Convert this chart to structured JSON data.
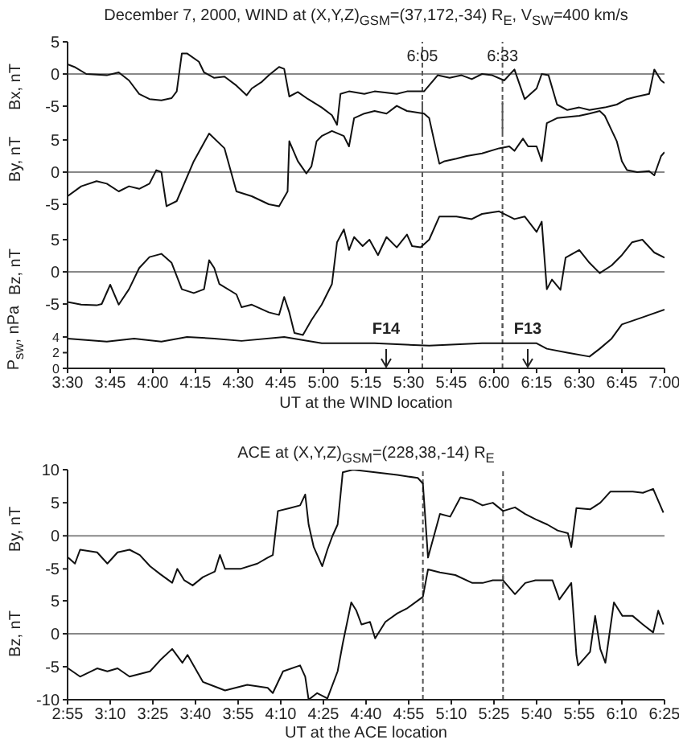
{
  "chart_data": [
    {
      "type": "line",
      "title": "December 7, 2000, WIND at (X,Y,Z)$_{GSM}$=(37,172,-34) R$_{E}$, V$_{SW}$=400 km/s",
      "ylabel": "Bx, nT",
      "color": "#111111",
      "x": [
        3.5,
        3.54,
        3.61,
        3.73,
        3.8,
        3.86,
        3.92,
        3.98,
        4.05,
        4.11,
        4.14,
        4.17,
        4.2,
        4.27,
        4.3,
        4.36,
        4.42,
        4.49,
        4.55,
        4.58,
        4.64,
        4.68,
        4.74,
        4.77,
        4.8,
        4.85,
        4.91,
        4.99,
        5.05,
        5.08,
        5.1,
        5.15,
        5.24,
        5.3,
        5.43,
        5.49,
        5.59,
        5.67,
        5.74,
        5.81,
        5.87,
        5.93,
        5.99,
        6.06,
        6.12,
        6.18,
        6.25,
        6.28,
        6.32,
        6.37,
        6.43,
        6.5,
        6.56,
        6.65,
        6.72,
        6.78,
        6.84,
        6.91,
        6.94,
        6.98,
        7.0
      ],
      "values": [
        1.5,
        1.1,
        0,
        -0.2,
        0.25,
        -1,
        -3.1,
        -3.9,
        -4.1,
        -3.75,
        -2.7,
        3.2,
        3.2,
        1.9,
        0.25,
        -0.6,
        -0.4,
        -1.8,
        -3.3,
        -2.25,
        -1.2,
        -0.2,
        1.1,
        0.8,
        -3.5,
        -2.8,
        -3.9,
        -5.2,
        -6.4,
        -7.9,
        -3.1,
        -2.7,
        -3.1,
        -2.7,
        -3.1,
        -2.7,
        -2.7,
        -0.2,
        -0.6,
        -0.2,
        -0.8,
        0,
        -0.2,
        -1,
        0.7,
        -3.9,
        -2.25,
        0,
        -0.2,
        -4.75,
        -5.6,
        -5.2,
        -5.6,
        -5.2,
        -4.75,
        -3.9,
        -3.5,
        -3.1,
        0.7,
        -1,
        -1.4
      ],
      "xlim": [
        3.5,
        7
      ],
      "ylim": [
        -9,
        5
      ],
      "yticks": [
        -5,
        0,
        5
      ],
      "tick_labels": "y",
      "ref_lines": [
        {
          "axis": "y",
          "value": 0,
          "color": "#888888"
        },
        {
          "axis": "x",
          "value": 5.58,
          "label": "6:05",
          "color": "#555555",
          "line_style": "dashed"
        },
        {
          "axis": "x",
          "value": 6.05,
          "label": "6:33",
          "color": "#555555",
          "line_style": "dashed"
        }
      ]
    },
    {
      "type": "line",
      "ylabel": "By, nT",
      "color": "#111111",
      "x": [
        3.5,
        3.58,
        3.67,
        3.73,
        3.8,
        3.86,
        3.92,
        3.98,
        4.02,
        4.05,
        4.08,
        4.14,
        4.24,
        4.33,
        4.42,
        4.49,
        4.58,
        4.68,
        4.74,
        4.79,
        4.8,
        4.85,
        4.9,
        4.93,
        4.96,
        4.99,
        5.05,
        5.12,
        5.15,
        5.18,
        5.24,
        5.3,
        5.37,
        5.43,
        5.49,
        5.59,
        5.62,
        5.65,
        5.68,
        5.71,
        5.78,
        5.84,
        5.93,
        6.03,
        6.09,
        6.12,
        6.17,
        6.2,
        6.25,
        6.28,
        6.31,
        6.37,
        6.5,
        6.56,
        6.62,
        6.65,
        6.72,
        6.75,
        6.78,
        6.84,
        6.91,
        6.94,
        6.98,
        7.0
      ],
      "values": [
        -3.75,
        -2.2,
        -1.4,
        -1.8,
        -3,
        -2.2,
        -2.6,
        -1.8,
        0.3,
        0,
        -5.3,
        -4.5,
        1.7,
        6,
        3.7,
        -3,
        -3.75,
        -5,
        -5.3,
        -3,
        4.8,
        1.7,
        -0.2,
        0.9,
        4.8,
        5.6,
        6.4,
        5.6,
        4,
        8.4,
        9.1,
        9.5,
        9.1,
        10.3,
        9.5,
        9.1,
        8.4,
        4.8,
        1.3,
        1.7,
        2.1,
        2.5,
        2.9,
        3.7,
        4,
        3.3,
        5.2,
        4,
        4,
        1.7,
        7.6,
        8.4,
        8.75,
        9.1,
        9.5,
        8.75,
        4.8,
        1.7,
        0.3,
        0,
        0.15,
        -0.5,
        2.5,
        3.1
      ],
      "xlim": [
        3.5,
        7
      ],
      "ylim": [
        -7,
        11
      ],
      "yticks": [
        -5,
        0,
        5
      ],
      "tick_labels": "y",
      "ref_lines": [
        {
          "axis": "y",
          "value": 0,
          "color": "#888888"
        },
        {
          "axis": "x",
          "value": 5.58,
          "color": "#555555",
          "line_style": "dashed"
        },
        {
          "axis": "x",
          "value": 6.05,
          "color": "#555555",
          "line_style": "dashed"
        }
      ]
    },
    {
      "type": "line",
      "ylabel": "Bz, nT",
      "color": "#111111",
      "x": [
        3.5,
        3.58,
        3.67,
        3.7,
        3.75,
        3.8,
        3.86,
        3.92,
        3.98,
        4.05,
        4.11,
        4.17,
        4.24,
        4.3,
        4.33,
        4.36,
        4.39,
        4.49,
        4.52,
        4.58,
        4.68,
        4.74,
        4.77,
        4.8,
        4.83,
        4.88,
        4.93,
        4.99,
        5.05,
        5.08,
        5.12,
        5.15,
        5.18,
        5.23,
        5.27,
        5.32,
        5.37,
        5.43,
        5.49,
        5.52,
        5.57,
        5.62,
        5.68,
        5.78,
        5.87,
        5.93,
        6.03,
        6.12,
        6.18,
        6.25,
        6.28,
        6.31,
        6.34,
        6.39,
        6.42,
        6.5,
        6.56,
        6.62,
        6.69,
        6.75,
        6.81,
        6.87,
        6.94,
        7.0
      ],
      "values": [
        -4.7,
        -5.1,
        -5.2,
        -5,
        -2,
        -5.1,
        -2.7,
        0.6,
        2.3,
        2.8,
        1.4,
        -2.7,
        -3.3,
        -2.7,
        1.8,
        0.6,
        -1.9,
        -3.5,
        -5.5,
        -5.1,
        -6.3,
        -6.7,
        -3.9,
        -6.3,
        -9.5,
        -9.8,
        -7.5,
        -5.1,
        -1.9,
        4.6,
        6.6,
        3.4,
        5.4,
        4,
        5,
        2.6,
        5.4,
        3.8,
        5.8,
        4,
        3.8,
        5,
        8.6,
        8.6,
        8.2,
        9,
        9.4,
        8.2,
        8.6,
        6.2,
        7.8,
        -2.7,
        -1.2,
        -2.8,
        2.2,
        3.4,
        1.4,
        -0.2,
        1,
        2.6,
        4.6,
        5,
        3,
        2.2
      ],
      "xlim": [
        3.5,
        7
      ],
      "ylim": [
        -10,
        10
      ],
      "yticks": [
        -5,
        0,
        5
      ],
      "tick_labels": "y",
      "ref_lines": [
        {
          "axis": "y",
          "value": 0,
          "color": "#888888"
        },
        {
          "axis": "x",
          "value": 5.58,
          "color": "#555555",
          "line_style": "dashed"
        },
        {
          "axis": "x",
          "value": 6.05,
          "color": "#555555",
          "line_style": "dashed"
        }
      ]
    },
    {
      "type": "line",
      "ylabel": "P$_{sw}$, nPa",
      "xlabel": "UT at the WIND location",
      "color": "#111111",
      "x": [
        3.5,
        3.73,
        3.89,
        4.05,
        4.2,
        4.36,
        4.52,
        4.77,
        4.99,
        5.3,
        5.62,
        5.93,
        6.25,
        6.31,
        6.43,
        6.56,
        6.62,
        6.69,
        6.75,
        6.87,
        7.0
      ],
      "values": [
        3.8,
        3.4,
        3.8,
        3.4,
        4,
        3.8,
        3.5,
        4,
        3.2,
        3.2,
        2.9,
        3.2,
        3.2,
        2.5,
        2,
        1.5,
        2.5,
        3.8,
        5.6,
        6.5,
        7.5
      ],
      "xlim": [
        3.5,
        7
      ],
      "ylim": [
        0,
        8
      ],
      "yticks": [
        0,
        2,
        4
      ],
      "xticks": [
        {
          "value": 3.5,
          "label": "3:30"
        },
        {
          "value": 3.75,
          "label": "3:45"
        },
        {
          "value": 4,
          "label": "4:00"
        },
        {
          "value": 4.25,
          "label": "4:15"
        },
        {
          "value": 4.5,
          "label": "4:30"
        },
        {
          "value": 4.75,
          "label": "4:45"
        },
        {
          "value": 5,
          "label": "5:00"
        },
        {
          "value": 5.25,
          "label": "5:15"
        },
        {
          "value": 5.5,
          "label": "5:30"
        },
        {
          "value": 5.75,
          "label": "5:45"
        },
        {
          "value": 6,
          "label": "6:00"
        },
        {
          "value": 6.25,
          "label": "6:15"
        },
        {
          "value": 6.5,
          "label": "6:30"
        },
        {
          "value": 6.75,
          "label": "6:45"
        },
        {
          "value": 7,
          "label": "7:00"
        }
      ],
      "ref_lines": [
        {
          "axis": "x",
          "value": 5.58,
          "color": "#555555",
          "line_style": "dashed"
        },
        {
          "axis": "x",
          "value": 6.05,
          "color": "#555555",
          "line_style": "dashed"
        }
      ],
      "annotations": [
        "F14",
        "F13"
      ]
    },
    {
      "type": "line",
      "title": "ACE at (X,Y,Z)$_{GSM}$=(228,38,-14) R$_{E}$",
      "ylabel": "By, nT",
      "color": "#111111",
      "x": [
        2.92,
        2.96,
        2.99,
        3.09,
        3.15,
        3.21,
        3.28,
        3.34,
        3.4,
        3.46,
        3.53,
        3.56,
        3.6,
        3.65,
        3.71,
        3.78,
        3.81,
        3.84,
        3.93,
        4.03,
        4.09,
        4.12,
        4.15,
        4.22,
        4.28,
        4.31,
        4.33,
        4.36,
        4.41,
        4.44,
        4.47,
        4.5,
        4.53,
        4.59,
        4.72,
        4.85,
        4.97,
        5.0,
        5.03,
        5.1,
        5.16,
        5.22,
        5.29,
        5.35,
        5.41,
        5.47,
        5.54,
        5.6,
        5.66,
        5.73,
        5.79,
        5.85,
        5.87,
        5.9,
        5.98,
        6.04,
        6.1,
        6.23,
        6.29,
        6.35,
        6.41
      ],
      "values": [
        -3.3,
        -4.2,
        -2.1,
        -2.5,
        -4.2,
        -2.5,
        -2.1,
        -2.9,
        -4.6,
        -5.8,
        -7.1,
        -5,
        -6.7,
        -7.5,
        -6.25,
        -5.4,
        -2.9,
        -5,
        -5,
        -4.2,
        -3.3,
        -2.9,
        3.75,
        4.2,
        4.6,
        6.25,
        1.7,
        -1.7,
        -4.6,
        -2.1,
        0,
        1.7,
        9.6,
        10,
        9.6,
        9.2,
        8.75,
        7.9,
        -3.3,
        3.3,
        2.9,
        5.8,
        5.4,
        4.6,
        5,
        3.75,
        4.3,
        3.3,
        2.5,
        1.7,
        0.8,
        0.4,
        -1.7,
        4.2,
        4,
        5,
        6.7,
        6.7,
        6.5,
        7.1,
        3.5
      ],
      "xlim": [
        2.9167,
        6.4167
      ],
      "ylim": [
        -8,
        10
      ],
      "yticks": [
        -5,
        0,
        5,
        10
      ],
      "tick_labels": "y",
      "ref_lines": [
        {
          "axis": "y",
          "value": 0,
          "color": "#888888"
        },
        {
          "axis": "x",
          "value": 5.0,
          "color": "#555555",
          "line_style": "dashed"
        },
        {
          "axis": "x",
          "value": 5.47,
          "color": "#555555",
          "line_style": "dashed"
        }
      ]
    },
    {
      "type": "line",
      "ylabel": "Bz, nT",
      "xlabel": "UT at the ACE location",
      "color": "#111111",
      "x": [
        2.92,
        2.99,
        3.09,
        3.15,
        3.21,
        3.28,
        3.4,
        3.46,
        3.53,
        3.59,
        3.62,
        3.71,
        3.84,
        3.97,
        4.09,
        4.12,
        4.18,
        4.28,
        4.31,
        4.33,
        4.38,
        4.44,
        4.5,
        4.53,
        4.58,
        4.61,
        4.64,
        4.69,
        4.72,
        4.78,
        4.85,
        4.91,
        5.0,
        5.03,
        5.1,
        5.19,
        5.29,
        5.35,
        5.41,
        5.47,
        5.54,
        5.6,
        5.66,
        5.76,
        5.8,
        5.87,
        5.9,
        5.91,
        5.98,
        6.01,
        6.04,
        6.07,
        6.12,
        6.17,
        6.23,
        6.29,
        6.35,
        6.38,
        6.41
      ],
      "values": [
        -5.25,
        -6.5,
        -5.25,
        -5.7,
        -5.25,
        -6.5,
        -5.7,
        -4,
        -2.3,
        -4.4,
        -3.2,
        -7.3,
        -8.6,
        -7.75,
        -8.2,
        -9,
        -5.7,
        -4.8,
        -6.5,
        -10,
        -9,
        -9.8,
        -5.7,
        -1.5,
        4.75,
        3.5,
        1.4,
        1.8,
        -0.7,
        1.8,
        3.1,
        3.9,
        5.6,
        9.75,
        9.3,
        8.9,
        7.7,
        7.7,
        8.1,
        8.1,
        6,
        7.7,
        8.1,
        8.1,
        5.2,
        7.7,
        -3.2,
        -4.8,
        -2.75,
        2.7,
        -2.3,
        -4.4,
        4.75,
        2.7,
        2.7,
        1.4,
        0.2,
        3.5,
        1.4
      ],
      "xlim": [
        2.9167,
        6.4167
      ],
      "ylim": [
        -10,
        10
      ],
      "yticks": [
        -10,
        -5,
        0,
        5
      ],
      "xticks": [
        {
          "value": 2.9167,
          "label": "2:55"
        },
        {
          "value": 3.1667,
          "label": "3:10"
        },
        {
          "value": 3.4167,
          "label": "3:25"
        },
        {
          "value": 3.6667,
          "label": "3:40"
        },
        {
          "value": 3.9167,
          "label": "3:55"
        },
        {
          "value": 4.1667,
          "label": "4:10"
        },
        {
          "value": 4.4167,
          "label": "4:25"
        },
        {
          "value": 4.6667,
          "label": "4:40"
        },
        {
          "value": 4.9167,
          "label": "4:55"
        },
        {
          "value": 5.1667,
          "label": "5:10"
        },
        {
          "value": 5.4167,
          "label": "5:25"
        },
        {
          "value": 5.6667,
          "label": "5:40"
        },
        {
          "value": 5.9167,
          "label": "5:55"
        },
        {
          "value": 6.1667,
          "label": "6:10"
        },
        {
          "value": 6.4167,
          "label": "6:25"
        }
      ],
      "ref_lines": [
        {
          "axis": "y",
          "value": 0,
          "color": "#888888"
        },
        {
          "axis": "x",
          "value": 5.0,
          "color": "#555555",
          "line_style": "dashed"
        },
        {
          "axis": "x",
          "value": 5.47,
          "color": "#555555",
          "line_style": "dashed"
        }
      ]
    }
  ]
}
